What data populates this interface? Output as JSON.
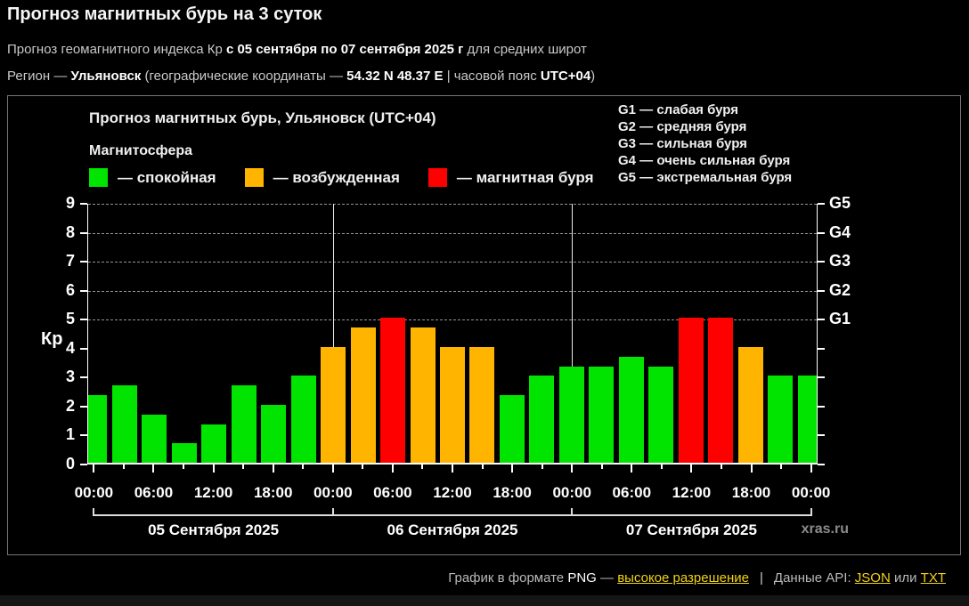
{
  "header": {
    "title": "Прогноз магнитных бурь на 3 суток",
    "line2_prefix": "Прогноз геомагнитного индекса Кр ",
    "line2_bold": "с 05 сентября по 07 сентября 2025 г",
    "line2_suffix": " для средних широт",
    "line3_prefix": "Регион — ",
    "line3_bold1": "Ульяновск",
    "line3_mid1": " (географические координаты — ",
    "line3_bold2": "54.32 N 48.37 E",
    "line3_mid2": " | часовой пояс ",
    "line3_bold3": "UTC+04",
    "line3_suffix": ")"
  },
  "chart": {
    "title": "Прогноз магнитных бурь, Ульяновск (UTC+04)",
    "legend_title": "Магнитосфера",
    "watermark": "xras.ru"
  },
  "chart_data": {
    "type": "bar",
    "title": "Прогноз магнитных бурь, Ульяновск (UTC+04)",
    "ylabel": "Кр",
    "xlabel": "",
    "ylim": [
      0,
      9
    ],
    "grid": "dashed horizontal lines at Kp 5-9 only",
    "gridlines_at": [
      5,
      6,
      7,
      8,
      9
    ],
    "y_ticks": [
      0,
      1,
      2,
      3,
      4,
      5,
      6,
      7,
      8,
      9
    ],
    "right_axis_ticks": [
      {
        "value": 5,
        "label": "G1"
      },
      {
        "value": 6,
        "label": "G2"
      },
      {
        "value": 7,
        "label": "G3"
      },
      {
        "value": 8,
        "label": "G4"
      },
      {
        "value": 9,
        "label": "G5"
      }
    ],
    "interval_hours": 3,
    "x_tick_labels": [
      "00:00",
      "06:00",
      "12:00",
      "18:00",
      "00:00",
      "06:00",
      "12:00",
      "18:00",
      "00:00",
      "06:00",
      "12:00",
      "18:00",
      "00:00"
    ],
    "days": [
      {
        "date": "05 Сентября 2025",
        "values": [
          2.33,
          2.67,
          1.67,
          0.67,
          1.33,
          2.67,
          2.0,
          3.0
        ]
      },
      {
        "date": "06 Сентября 2025",
        "values": [
          4.0,
          4.67,
          5.0,
          4.67,
          4.0,
          4.0,
          2.33,
          3.0
        ]
      },
      {
        "date": "07 Сентября 2025",
        "values": [
          3.33,
          3.33,
          3.67,
          3.33,
          5.0,
          5.0,
          4.0,
          3.0
        ]
      }
    ],
    "trailing_value": 3.0,
    "thresholds": {
      "excited_min": 4,
      "storm_min": 5
    },
    "status_colors": {
      "quiet": "#00e400",
      "excited": "#ffb400",
      "storm": "#ff0000"
    },
    "legend": [
      {
        "status": "quiet",
        "color": "#00e400",
        "label": "— спокойная"
      },
      {
        "status": "excited",
        "color": "#ffb400",
        "label": "— возбужденная"
      },
      {
        "status": "storm",
        "color": "#ff0000",
        "label": "— магнитная буря"
      }
    ],
    "g_scale_legend": [
      "G1 — слабая буря",
      "G2 — средняя буря",
      "G3 — сильная буря",
      "G4 — очень сильная буря",
      "G5 — экстремальная буря"
    ],
    "legend_position": "top"
  },
  "footer": {
    "text1": "График в формате ",
    "format_label": "PNG",
    "dash": " — ",
    "link_hires": "высокое разрешение",
    "separator": "|",
    "text2": "Данные API: ",
    "link_json": "JSON",
    "text3": " или ",
    "link_txt": "TXT",
    "link_color": "#f2d316"
  }
}
